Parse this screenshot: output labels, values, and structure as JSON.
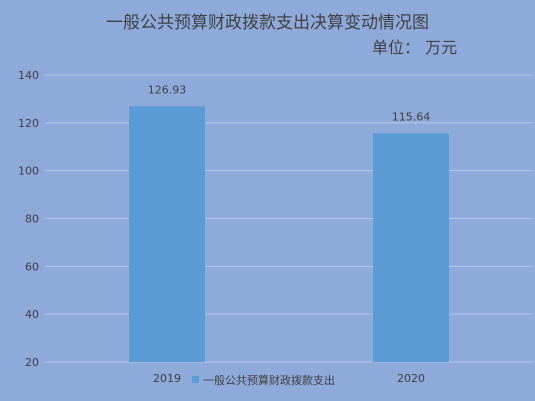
{
  "chart_data": {
    "type": "bar",
    "title": "一般公共预算财政拨款支出决算变动情况图",
    "subtitle": "单位：  万元",
    "categories": [
      "2019",
      "2020"
    ],
    "series": [
      {
        "name": "一般公共预算财政拨款支出",
        "values": [
          126.93,
          115.64
        ]
      }
    ],
    "data_labels": [
      "126.93",
      "115.64"
    ],
    "ylim": [
      20,
      140
    ],
    "yticks": [
      20,
      40,
      60,
      80,
      100,
      120,
      140
    ],
    "grid": true,
    "legend": "bottom",
    "bar_color": "#5b9bd5",
    "background_color": "#8eaadb",
    "grid_color": "#b4c7e7"
  }
}
